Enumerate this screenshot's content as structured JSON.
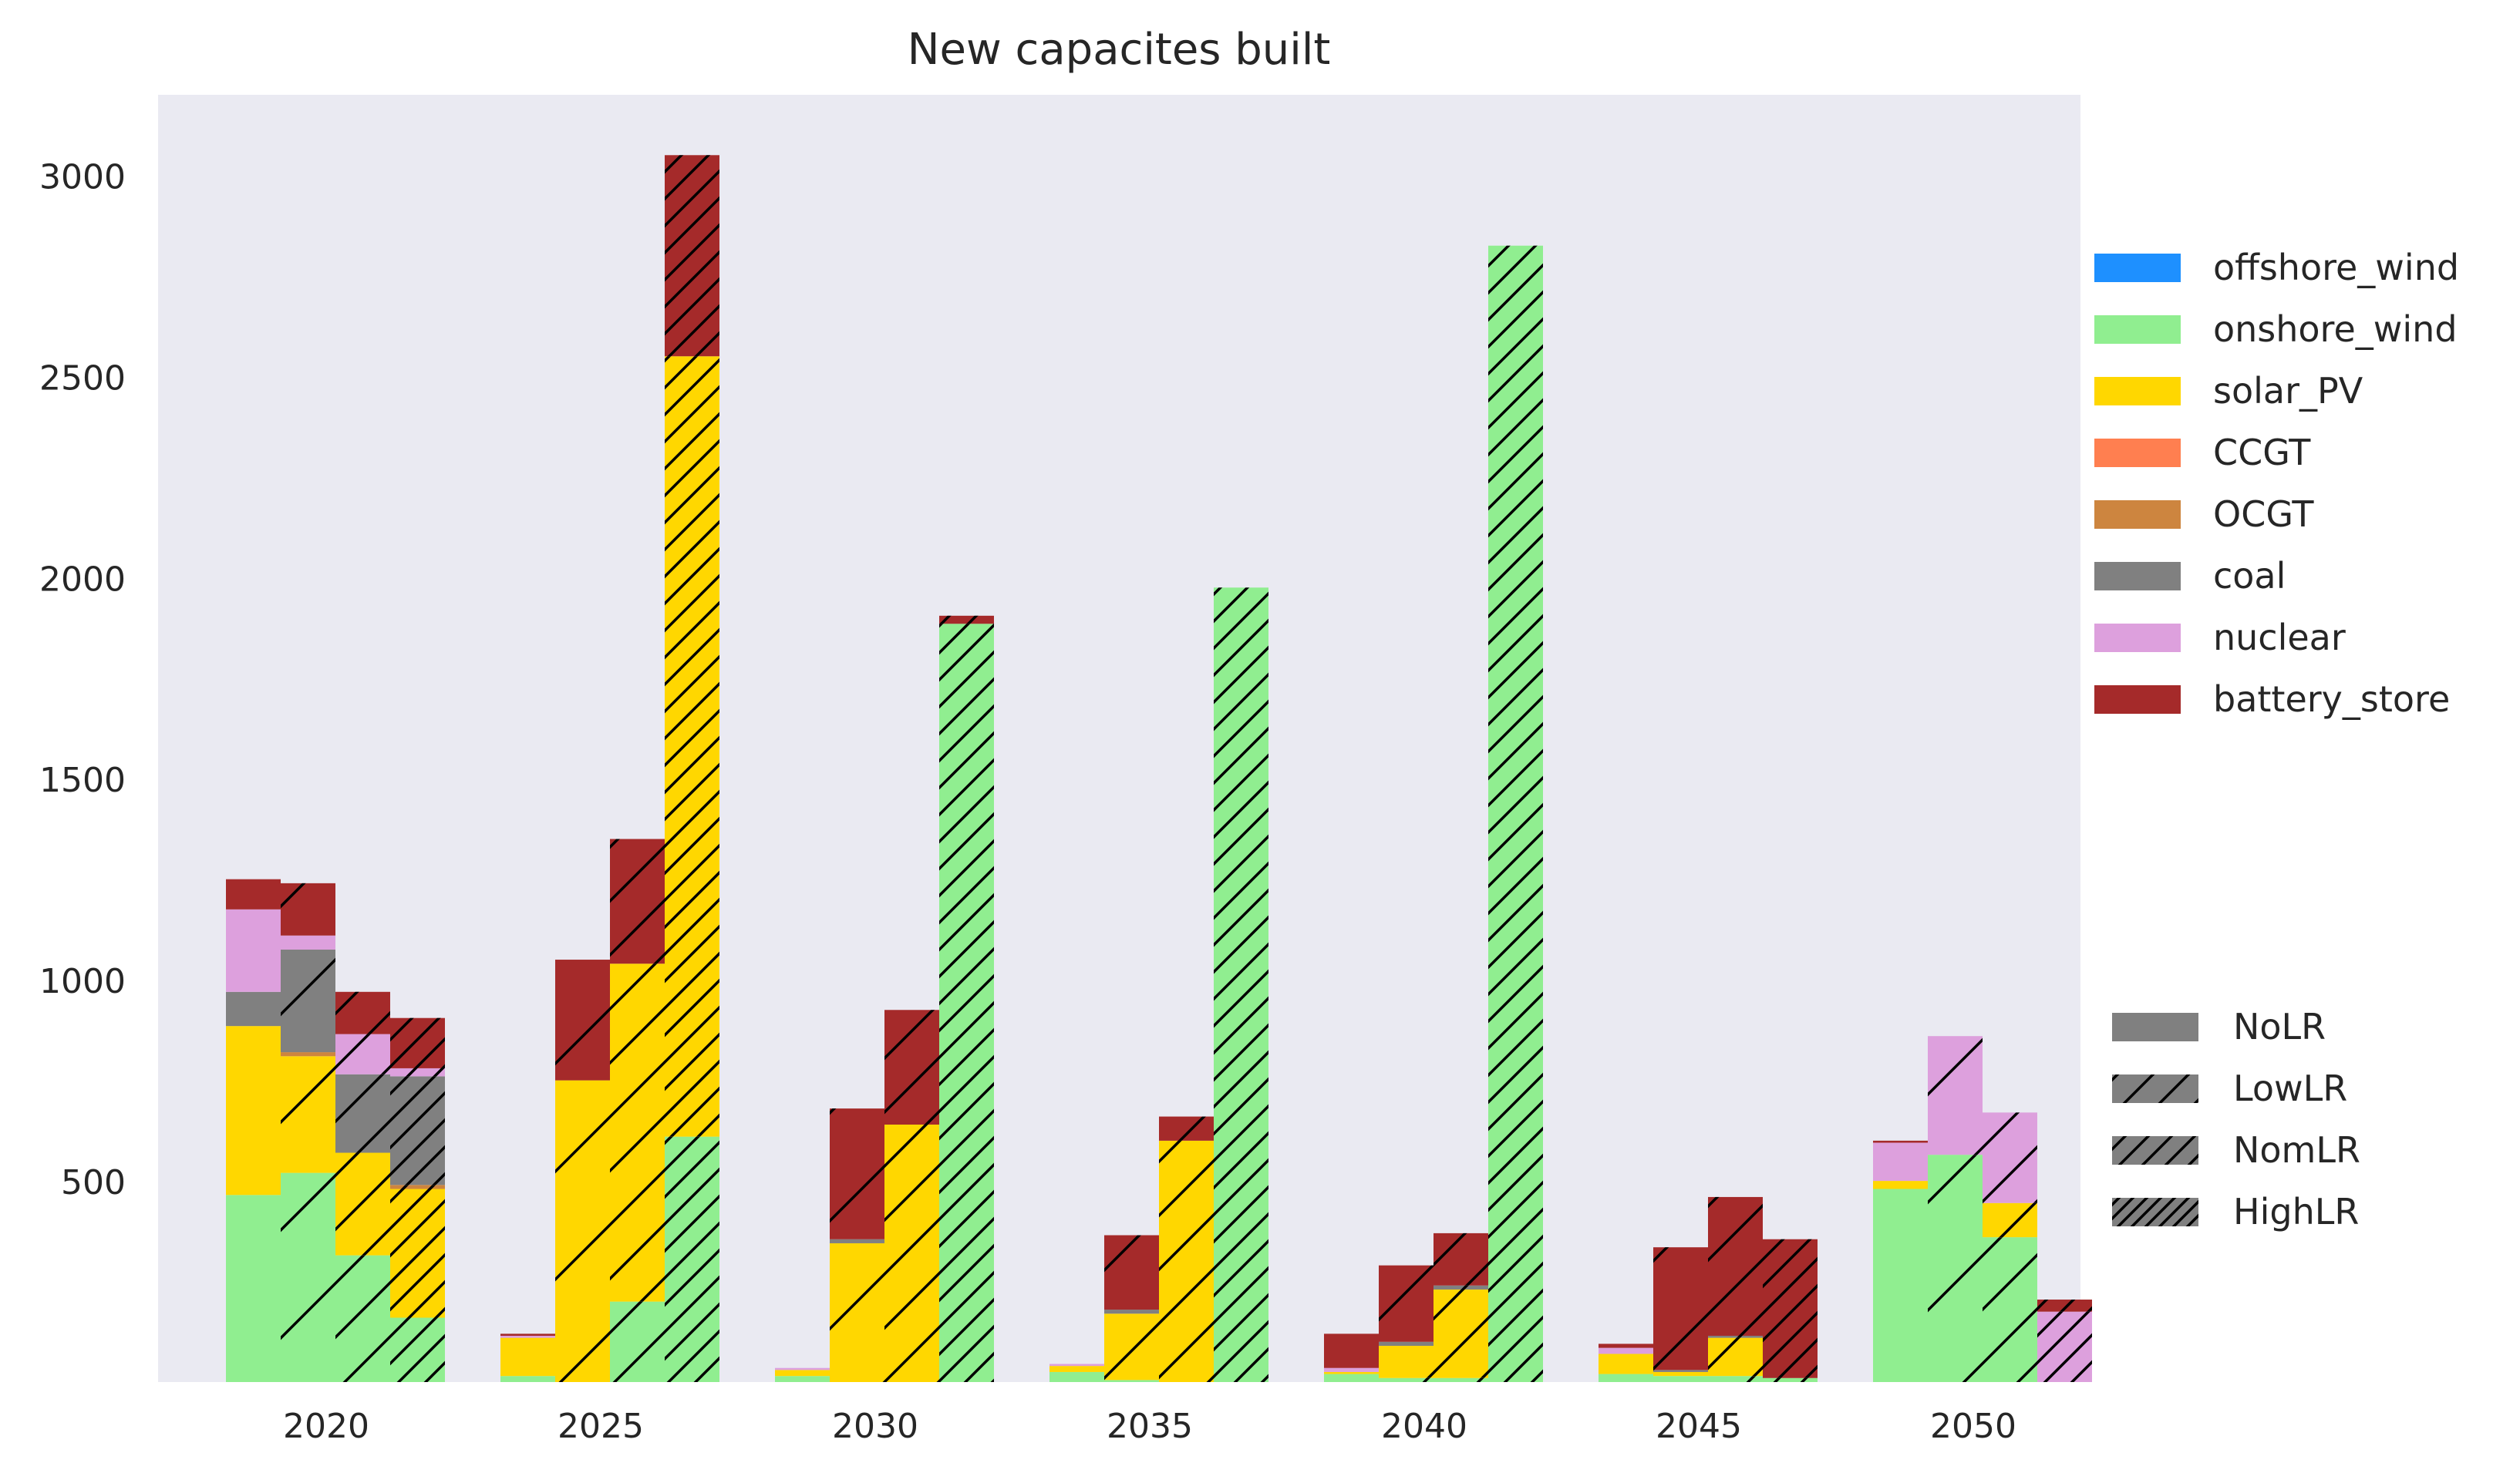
{
  "chart_data": {
    "type": "bar",
    "title": "New capacites built",
    "xlabel": "",
    "ylabel": "",
    "ylim": [
      0,
      3200
    ],
    "yticks": [
      500,
      1000,
      1500,
      2000,
      2500,
      3000
    ],
    "categories": [
      "2020",
      "2025",
      "2030",
      "2035",
      "2040",
      "2045",
      "2050"
    ],
    "stacked": true,
    "grid": false,
    "technologies": [
      {
        "name": "offshore_wind",
        "color": "#1e90ff"
      },
      {
        "name": "onshore_wind",
        "color": "#90ee90"
      },
      {
        "name": "solar_PV",
        "color": "#ffd700"
      },
      {
        "name": "CCGT",
        "color": "#ff7f50"
      },
      {
        "name": "OCGT",
        "color": "#cd853f"
      },
      {
        "name": "coal",
        "color": "#808080"
      },
      {
        "name": "nuclear",
        "color": "#dda0dd"
      },
      {
        "name": "battery_store",
        "color": "#a52a2a"
      }
    ],
    "scenarios": [
      {
        "name": "NoLR",
        "hatch": "none"
      },
      {
        "name": "LowLR",
        "hatch": "sparse"
      },
      {
        "name": "NomLR",
        "hatch": "medium"
      },
      {
        "name": "HighLR",
        "hatch": "dense"
      }
    ],
    "legend_position": "right",
    "series": [
      {
        "name": "NoLR",
        "values": {
          "2020": {
            "offshore_wind": 0,
            "onshore_wind": 465,
            "solar_PV": 420,
            "CCGT": 0,
            "OCGT": 0,
            "coal": 85,
            "nuclear": 205,
            "battery_store": 75
          },
          "2025": {
            "offshore_wind": 0,
            "onshore_wind": 15,
            "solar_PV": 95,
            "CCGT": 0,
            "OCGT": 0,
            "coal": 0,
            "nuclear": 5,
            "battery_store": 5
          },
          "2030": {
            "offshore_wind": 0,
            "onshore_wind": 15,
            "solar_PV": 15,
            "CCGT": 0,
            "OCGT": 0,
            "coal": 0,
            "nuclear": 5,
            "battery_store": 0
          },
          "2035": {
            "offshore_wind": 0,
            "onshore_wind": 25,
            "solar_PV": 15,
            "CCGT": 0,
            "OCGT": 0,
            "coal": 0,
            "nuclear": 5,
            "battery_store": 0
          },
          "2040": {
            "offshore_wind": 0,
            "onshore_wind": 20,
            "solar_PV": 5,
            "CCGT": 0,
            "OCGT": 0,
            "coal": 0,
            "nuclear": 10,
            "battery_store": 85
          },
          "2045": {
            "offshore_wind": 0,
            "onshore_wind": 20,
            "solar_PV": 50,
            "CCGT": 0,
            "OCGT": 0,
            "coal": 0,
            "nuclear": 15,
            "battery_store": 10
          },
          "2050": {
            "offshore_wind": 0,
            "onshore_wind": 480,
            "solar_PV": 20,
            "CCGT": 0,
            "OCGT": 0,
            "coal": 0,
            "nuclear": 95,
            "battery_store": 5
          }
        }
      },
      {
        "name": "LowLR",
        "values": {
          "2020": {
            "offshore_wind": 0,
            "onshore_wind": 520,
            "solar_PV": 290,
            "CCGT": 0,
            "OCGT": 10,
            "coal": 255,
            "nuclear": 35,
            "battery_store": 130
          },
          "2025": {
            "offshore_wind": 0,
            "onshore_wind": 0,
            "solar_PV": 750,
            "CCGT": 0,
            "OCGT": 0,
            "coal": 0,
            "nuclear": 0,
            "battery_store": 300
          },
          "2030": {
            "offshore_wind": 0,
            "onshore_wind": 0,
            "solar_PV": 345,
            "CCGT": 0,
            "OCGT": 0,
            "coal": 10,
            "nuclear": 0,
            "battery_store": 325
          },
          "2035": {
            "offshore_wind": 0,
            "onshore_wind": 5,
            "solar_PV": 165,
            "CCGT": 0,
            "OCGT": 0,
            "coal": 10,
            "nuclear": 0,
            "battery_store": 185
          },
          "2040": {
            "offshore_wind": 0,
            "onshore_wind": 10,
            "solar_PV": 80,
            "CCGT": 0,
            "OCGT": 0,
            "coal": 10,
            "nuclear": 0,
            "battery_store": 190
          },
          "2045": {
            "offshore_wind": 0,
            "onshore_wind": 15,
            "solar_PV": 10,
            "CCGT": 0,
            "OCGT": 0,
            "coal": 5,
            "nuclear": 0,
            "battery_store": 305
          },
          "2050": {
            "offshore_wind": 0,
            "onshore_wind": 565,
            "solar_PV": 0,
            "CCGT": 0,
            "OCGT": 0,
            "coal": 0,
            "nuclear": 295,
            "battery_store": 0
          }
        }
      },
      {
        "name": "NomLR",
        "values": {
          "2020": {
            "offshore_wind": 0,
            "onshore_wind": 315,
            "solar_PV": 255,
            "CCGT": 0,
            "OCGT": 0,
            "coal": 195,
            "nuclear": 100,
            "battery_store": 105
          },
          "2025": {
            "offshore_wind": 0,
            "onshore_wind": 200,
            "solar_PV": 840,
            "CCGT": 0,
            "OCGT": 0,
            "coal": 0,
            "nuclear": 0,
            "battery_store": 310
          },
          "2030": {
            "offshore_wind": 0,
            "onshore_wind": 0,
            "solar_PV": 640,
            "CCGT": 0,
            "OCGT": 0,
            "coal": 0,
            "nuclear": 0,
            "battery_store": 285
          },
          "2035": {
            "offshore_wind": 0,
            "onshore_wind": 0,
            "solar_PV": 600,
            "CCGT": 0,
            "OCGT": 0,
            "coal": 0,
            "nuclear": 0,
            "battery_store": 60
          },
          "2040": {
            "offshore_wind": 0,
            "onshore_wind": 10,
            "solar_PV": 220,
            "CCGT": 0,
            "OCGT": 0,
            "coal": 10,
            "nuclear": 0,
            "battery_store": 130
          },
          "2045": {
            "offshore_wind": 0,
            "onshore_wind": 15,
            "solar_PV": 95,
            "CCGT": 0,
            "OCGT": 0,
            "coal": 5,
            "nuclear": 0,
            "battery_store": 345
          },
          "2050": {
            "offshore_wind": 0,
            "onshore_wind": 360,
            "solar_PV": 85,
            "CCGT": 0,
            "OCGT": 0,
            "coal": 0,
            "nuclear": 225,
            "battery_store": 0
          }
        }
      },
      {
        "name": "HighLR",
        "values": {
          "2020": {
            "offshore_wind": 0,
            "onshore_wind": 160,
            "solar_PV": 320,
            "CCGT": 0,
            "OCGT": 10,
            "coal": 270,
            "nuclear": 20,
            "battery_store": 125
          },
          "2025": {
            "offshore_wind": 0,
            "onshore_wind": 610,
            "solar_PV": 1940,
            "CCGT": 0,
            "OCGT": 0,
            "coal": 0,
            "nuclear": 0,
            "battery_store": 500
          },
          "2030": {
            "offshore_wind": 0,
            "onshore_wind": 1885,
            "solar_PV": 0,
            "CCGT": 0,
            "OCGT": 0,
            "coal": 0,
            "nuclear": 0,
            "battery_store": 20
          },
          "2035": {
            "offshore_wind": 0,
            "onshore_wind": 1975,
            "solar_PV": 0,
            "CCGT": 0,
            "OCGT": 0,
            "coal": 0,
            "nuclear": 0,
            "battery_store": 0
          },
          "2040": {
            "offshore_wind": 0,
            "onshore_wind": 2825,
            "solar_PV": 0,
            "CCGT": 0,
            "OCGT": 0,
            "coal": 0,
            "nuclear": 0,
            "battery_store": 0
          },
          "2045": {
            "offshore_wind": 0,
            "onshore_wind": 10,
            "solar_PV": 0,
            "CCGT": 0,
            "OCGT": 0,
            "coal": 0,
            "nuclear": 0,
            "battery_store": 345
          },
          "2050": {
            "offshore_wind": 0,
            "onshore_wind": 0,
            "solar_PV": 0,
            "CCGT": 0,
            "OCGT": 0,
            "coal": 0,
            "nuclear": 175,
            "battery_store": 30
          }
        }
      }
    ]
  }
}
